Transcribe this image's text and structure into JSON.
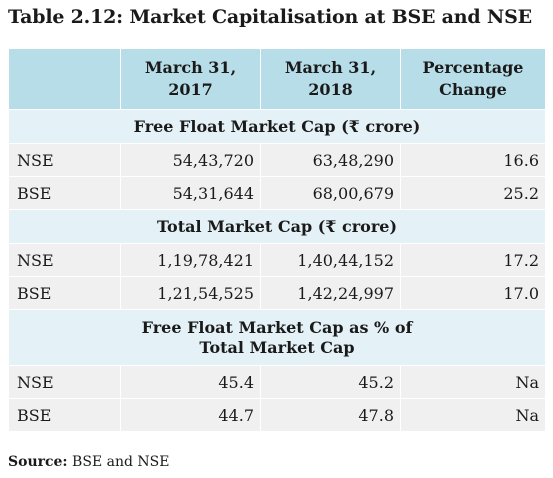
{
  "title": "Table 2.12: Market Capitalisation at BSE and NSE",
  "columns": [
    "",
    "March 31,\n2017",
    "March 31,\n2018",
    "Percentage\nChange"
  ],
  "columns_lines": [
    [
      ""
    ],
    [
      "March 31,",
      "2017"
    ],
    [
      "March 31,",
      "2018"
    ],
    [
      "Percentage",
      "Change"
    ]
  ],
  "sections": [
    {
      "heading_lines": [
        "Free Float Market Cap (₹ crore)"
      ],
      "rows": [
        {
          "label": "NSE",
          "v2017": "54,43,720",
          "v2018": "63,48,290",
          "change": "16.6"
        },
        {
          "label": "BSE",
          "v2017": "54,31,644",
          "v2018": "68,00,679",
          "change": "25.2"
        }
      ]
    },
    {
      "heading_lines": [
        "Total Market Cap (₹ crore)"
      ],
      "rows": [
        {
          "label": "NSE",
          "v2017": "1,19,78,421",
          "v2018": "1,40,44,152",
          "change": "17.2"
        },
        {
          "label": "BSE",
          "v2017": "1,21,54,525",
          "v2018": "1,42,24,997",
          "change": "17.0"
        }
      ]
    },
    {
      "heading_lines": [
        "Free Float Market Cap as % of",
        "Total Market Cap"
      ],
      "rows": [
        {
          "label": "NSE",
          "v2017": "45.4",
          "v2018": "45.2",
          "change": "Na"
        },
        {
          "label": "BSE",
          "v2017": "44.7",
          "v2018": "47.8",
          "change": "Na"
        }
      ]
    }
  ],
  "source": {
    "label": "Source:",
    "text": " BSE and NSE"
  },
  "colors": {
    "header_bg": "#b7dde8",
    "section_bg": "#e4f1f6",
    "row_bg": "#f0f0f0"
  }
}
